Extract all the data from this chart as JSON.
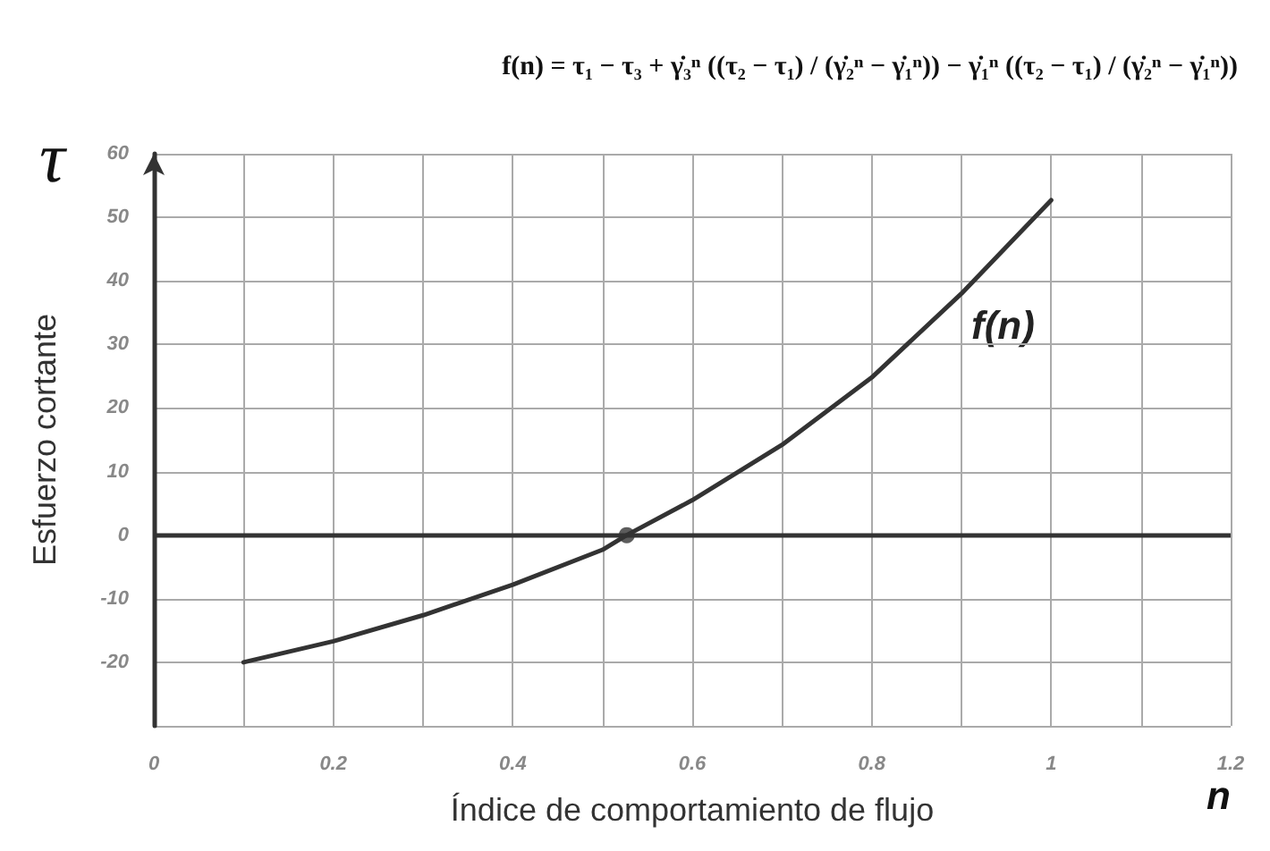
{
  "chart_data": {
    "type": "line",
    "xlabel": "Índice de comportamiento de flujo",
    "ylabel": "Esfuerzo cortante",
    "annotations": [
      "f(n) = τ₁ − τ₃ + γ̇₃ⁿ ((τ₂ − τ₁) / (γ̇₂ⁿ − γ̇₁ⁿ)) − γ̇₁ⁿ ((τ₂ − τ₁) / (γ̇₂ⁿ − γ̇₁ⁿ))",
      "τ",
      "n",
      "f(n)"
    ],
    "series": [
      {
        "color": "#333333",
        "marker": "none",
        "x": [
          0.1,
          0.2,
          0.3,
          0.4,
          0.5,
          0.527,
          0.6,
          0.7,
          0.8,
          0.9,
          1.0
        ],
        "values": [
          -20,
          -16.7,
          -12.6,
          -7.8,
          -2.3,
          0,
          5.5,
          14.2,
          24.8,
          38,
          52.7
        ]
      },
      {
        "type": "scatter",
        "color": "#333333",
        "marker": "circle",
        "x": [
          0.527
        ],
        "values": [
          0
        ]
      }
    ],
    "ref_lines": [
      {
        "axis": "y",
        "value": 0,
        "color": "#333333"
      }
    ],
    "xlim": [
      0,
      1.2
    ],
    "xticks": [
      0,
      {
        "value": 0.1,
        "label": null
      },
      0.2,
      {
        "value": 0.3,
        "label": null
      },
      0.4,
      {
        "value": 0.5,
        "label": null
      },
      0.6,
      {
        "value": 0.7,
        "label": null
      },
      0.8,
      {
        "value": 0.9,
        "label": null
      },
      1,
      {
        "value": 1.1,
        "label": null
      },
      1.2
    ],
    "ylim": [
      -30,
      60
    ],
    "yticks": [
      {
        "value": -30,
        "label": null
      },
      -20,
      -10,
      0,
      10,
      20,
      30,
      40,
      50,
      60
    ],
    "grid": true
  }
}
